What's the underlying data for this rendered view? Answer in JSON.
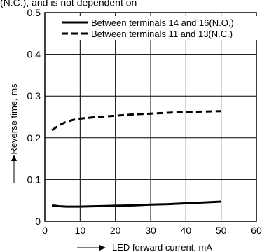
{
  "chart_data": {
    "type": "line",
    "title": "",
    "header_fragment": "(N.C.), and is not dependent on",
    "xlabel": "LED forward current, mA",
    "ylabel": "Reverse time, ms",
    "xlim": [
      0,
      60
    ],
    "ylim": [
      0,
      0.5
    ],
    "xticks": [
      "0",
      "10",
      "20",
      "30",
      "40",
      "50",
      "60"
    ],
    "yticks": [
      "0",
      "0.1",
      "0.2",
      "0.3",
      "0.4",
      "0.5"
    ],
    "grid": true,
    "legend_position": "top-right",
    "series": [
      {
        "name": "Between terminals 14 and 16(N.O.)",
        "style": "solid",
        "x": [
          2,
          4,
          6,
          8,
          10,
          15,
          20,
          25,
          30,
          35,
          40,
          45,
          50
        ],
        "y": [
          0.038,
          0.036,
          0.035,
          0.035,
          0.035,
          0.036,
          0.037,
          0.038,
          0.04,
          0.041,
          0.043,
          0.045,
          0.047
        ]
      },
      {
        "name": "Between terminals 11 and 13(N.C.)",
        "style": "dashed",
        "x": [
          2,
          4,
          6,
          8,
          10,
          15,
          20,
          25,
          30,
          35,
          40,
          45,
          50
        ],
        "y": [
          0.218,
          0.23,
          0.238,
          0.243,
          0.246,
          0.25,
          0.253,
          0.256,
          0.258,
          0.26,
          0.262,
          0.263,
          0.264
        ]
      }
    ]
  }
}
